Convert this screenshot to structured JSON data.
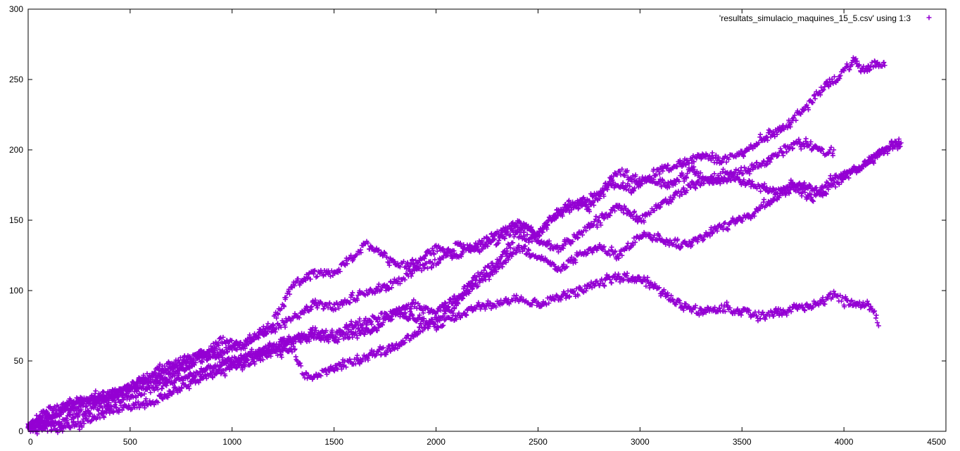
{
  "chart_data": {
    "type": "scatter",
    "title": "",
    "xlabel": "",
    "ylabel": "",
    "xlim": [
      0,
      4500
    ],
    "ylim": [
      0,
      300
    ],
    "x_ticks": [
      "0",
      "500",
      "1000",
      "1500",
      "2000",
      "2500",
      "3000",
      "3500",
      "4000",
      "4500"
    ],
    "y_ticks": [
      "0",
      "50",
      "100",
      "150",
      "200",
      "250",
      "300"
    ],
    "grid": false,
    "legend_position": "top-right",
    "marker": "+",
    "color": "#9400d3",
    "series": [
      {
        "name": "'resultats_simulacio_maquines_15_5.csv' using 1:3",
        "traces": [
          [
            [
              0,
              2
            ],
            [
              80,
              8
            ],
            [
              200,
              18
            ],
            [
              400,
              25
            ],
            [
              600,
              38
            ],
            [
              800,
              50
            ],
            [
              950,
              65
            ],
            [
              1050,
              60
            ],
            [
              1200,
              78
            ],
            [
              1300,
              104
            ],
            [
              1400,
              112
            ],
            [
              1500,
              112
            ],
            [
              1600,
              125
            ],
            [
              1660,
              133
            ],
            [
              1720,
              128
            ],
            [
              1800,
              118
            ],
            [
              1900,
              120
            ],
            [
              2000,
              130
            ],
            [
              2100,
              125
            ],
            [
              2200,
              132
            ],
            [
              2300,
              140
            ],
            [
              2400,
              148
            ],
            [
              2500,
              140
            ],
            [
              2600,
              155
            ],
            [
              2700,
              162
            ],
            [
              2800,
              170
            ],
            [
              2900,
              185
            ],
            [
              3000,
              178
            ],
            [
              3100,
              185
            ],
            [
              3200,
              190
            ],
            [
              3300,
              196
            ],
            [
              3400,
              192
            ],
            [
              3500,
              198
            ],
            [
              3600,
              208
            ],
            [
              3700,
              215
            ],
            [
              3800,
              228
            ],
            [
              3900,
              245
            ],
            [
              4000,
              255
            ],
            [
              4050,
              263
            ],
            [
              4100,
              255
            ],
            [
              4150,
              262
            ],
            [
              4200,
              260
            ]
          ],
          [
            [
              0,
              5
            ],
            [
              100,
              15
            ],
            [
              250,
              22
            ],
            [
              450,
              28
            ],
            [
              650,
              45
            ],
            [
              850,
              55
            ],
            [
              1000,
              58
            ],
            [
              1150,
              70
            ],
            [
              1300,
              80
            ],
            [
              1400,
              90
            ],
            [
              1500,
              88
            ],
            [
              1600,
              95
            ],
            [
              1700,
              100
            ],
            [
              1800,
              105
            ],
            [
              1900,
              115
            ],
            [
              2000,
              120
            ],
            [
              2100,
              132
            ],
            [
              2200,
              130
            ],
            [
              2300,
              135
            ],
            [
              2400,
              145
            ],
            [
              2500,
              140
            ],
            [
              2550,
              150
            ],
            [
              2650,
              162
            ],
            [
              2750,
              158
            ],
            [
              2850,
              176
            ],
            [
              2950,
              172
            ],
            [
              3050,
              180
            ],
            [
              3150,
              175
            ],
            [
              3250,
              185
            ],
            [
              3350,
              178
            ],
            [
              3450,
              180
            ],
            [
              3550,
              175
            ],
            [
              3650,
              170
            ],
            [
              3750,
              175
            ],
            [
              3850,
              165
            ],
            [
              3950,
              180
            ],
            [
              4050,
              185
            ],
            [
              4150,
              195
            ],
            [
              4250,
              205
            ],
            [
              4270,
              202
            ]
          ],
          [
            [
              0,
              3
            ],
            [
              100,
              10
            ],
            [
              300,
              20
            ],
            [
              500,
              30
            ],
            [
              700,
              40
            ],
            [
              900,
              55
            ],
            [
              1000,
              48
            ],
            [
              1100,
              55
            ],
            [
              1200,
              60
            ],
            [
              1300,
              65
            ],
            [
              1400,
              68
            ],
            [
              1500,
              65
            ],
            [
              1600,
              70
            ],
            [
              1700,
              72
            ],
            [
              1800,
              85
            ],
            [
              1900,
              90
            ],
            [
              2000,
              85
            ],
            [
              2100,
              95
            ],
            [
              2200,
              110
            ],
            [
              2300,
              120
            ],
            [
              2400,
              140
            ],
            [
              2500,
              135
            ],
            [
              2600,
              130
            ],
            [
              2700,
              140
            ],
            [
              2800,
              150
            ],
            [
              2900,
              160
            ],
            [
              3000,
              150
            ],
            [
              3100,
              160
            ],
            [
              3200,
              170
            ],
            [
              3300,
              178
            ],
            [
              3400,
              182
            ],
            [
              3500,
              185
            ],
            [
              3600,
              190
            ],
            [
              3700,
              200
            ],
            [
              3800,
              205
            ],
            [
              3900,
              198
            ],
            [
              3950,
              200
            ]
          ],
          [
            [
              0,
              1
            ],
            [
              250,
              5
            ],
            [
              400,
              15
            ],
            [
              600,
              20
            ],
            [
              800,
              35
            ],
            [
              1000,
              45
            ],
            [
              1200,
              55
            ],
            [
              1300,
              58
            ],
            [
              1350,
              40
            ],
            [
              1400,
              38
            ],
            [
              1500,
              45
            ],
            [
              1600,
              50
            ],
            [
              1700,
              55
            ],
            [
              1800,
              60
            ],
            [
              1900,
              70
            ],
            [
              2000,
              80
            ],
            [
              2100,
              90
            ],
            [
              2200,
              105
            ],
            [
              2300,
              115
            ],
            [
              2400,
              130
            ],
            [
              2500,
              125
            ],
            [
              2600,
              115
            ],
            [
              2700,
              125
            ],
            [
              2800,
              130
            ],
            [
              2900,
              125
            ],
            [
              3000,
              140
            ],
            [
              3100,
              138
            ],
            [
              3200,
              132
            ],
            [
              3300,
              138
            ],
            [
              3400,
              145
            ],
            [
              3500,
              150
            ],
            [
              3600,
              160
            ],
            [
              3700,
              170
            ],
            [
              3800,
              175
            ],
            [
              3900,
              170
            ],
            [
              4000,
              180
            ],
            [
              4100,
              190
            ],
            [
              4200,
              200
            ],
            [
              4280,
              205
            ]
          ],
          [
            [
              0,
              0
            ],
            [
              200,
              10
            ],
            [
              400,
              20
            ],
            [
              600,
              30
            ],
            [
              800,
              40
            ],
            [
              1000,
              50
            ],
            [
              1200,
              58
            ],
            [
              1300,
              65
            ],
            [
              1400,
              70
            ],
            [
              1500,
              68
            ],
            [
              1600,
              75
            ],
            [
              1700,
              80
            ],
            [
              1800,
              85
            ],
            [
              1900,
              80
            ],
            [
              2000,
              75
            ],
            [
              2100,
              82
            ],
            [
              2200,
              88
            ],
            [
              2300,
              90
            ],
            [
              2400,
              95
            ],
            [
              2500,
              90
            ],
            [
              2600,
              95
            ],
            [
              2700,
              100
            ],
            [
              2800,
              105
            ],
            [
              2900,
              110
            ],
            [
              3000,
              108
            ],
            [
              3100,
              100
            ],
            [
              3200,
              90
            ],
            [
              3300,
              85
            ],
            [
              3400,
              88
            ],
            [
              3500,
              85
            ],
            [
              3600,
              82
            ],
            [
              3700,
              85
            ],
            [
              3800,
              88
            ],
            [
              3900,
              92
            ],
            [
              3950,
              98
            ],
            [
              4000,
              92
            ],
            [
              4100,
              90
            ],
            [
              4150,
              85
            ],
            [
              4170,
              75
            ]
          ]
        ]
      }
    ]
  }
}
